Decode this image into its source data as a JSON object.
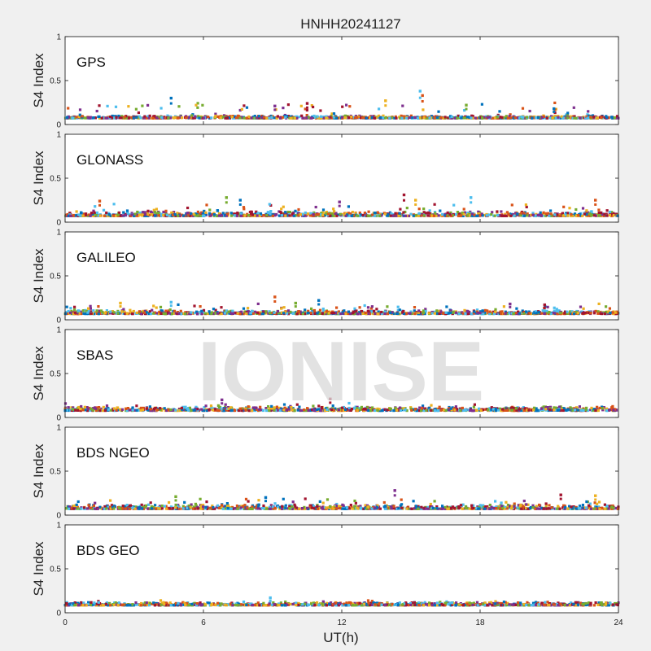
{
  "figure": {
    "title": "HNHH20241127",
    "watermark": "IONISE",
    "xlabel": "UT(h)",
    "ylabel": "S4 Index"
  },
  "chart_data": {
    "type": "scatter",
    "title": "HNHH20241127",
    "xlabel": "UT(h)",
    "ylabel": "S4 Index",
    "xlim": [
      0,
      24
    ],
    "ylim": [
      0,
      1
    ],
    "xticks": [
      0,
      6,
      12,
      18,
      24
    ],
    "yticks": [
      0,
      0.5,
      1
    ],
    "xtick_labels": [
      "0",
      "6",
      "12",
      "18",
      "24"
    ],
    "ytick_labels": [
      "0",
      "0.5",
      "1"
    ],
    "grid": false,
    "series_colors": [
      "#0072bd",
      "#d95319",
      "#edb120",
      "#7e2f8e",
      "#77ac30",
      "#4dbeee",
      "#a2142f"
    ],
    "panels": [
      {
        "name": "GPS",
        "baseline": [
          0.06,
          0.1
        ],
        "max_spike": 0.38,
        "spikes": [
          [
            4.6,
            0.3
          ],
          [
            9.1,
            0.21
          ],
          [
            10.5,
            0.24
          ],
          [
            13.9,
            0.27
          ],
          [
            15.4,
            0.38
          ],
          [
            15.5,
            0.33
          ],
          [
            17.4,
            0.22
          ],
          [
            21.2,
            0.18
          ]
        ]
      },
      {
        "name": "GLONASS",
        "baseline": [
          0.05,
          0.12
        ],
        "max_spike": 0.31,
        "spikes": [
          [
            1.5,
            0.24
          ],
          [
            7.0,
            0.28
          ],
          [
            7.6,
            0.25
          ],
          [
            11.9,
            0.23
          ],
          [
            14.7,
            0.31
          ],
          [
            15.2,
            0.25
          ],
          [
            17.6,
            0.28
          ],
          [
            23.0,
            0.25
          ]
        ]
      },
      {
        "name": "GALILEO",
        "baseline": [
          0.05,
          0.11
        ],
        "max_spike": 0.26,
        "spikes": [
          [
            2.4,
            0.19
          ],
          [
            4.6,
            0.2
          ],
          [
            9.1,
            0.26
          ],
          [
            10.0,
            0.19
          ],
          [
            11.0,
            0.22
          ],
          [
            19.3,
            0.18
          ],
          [
            20.8,
            0.17
          ]
        ]
      },
      {
        "name": "SBAS",
        "baseline": [
          0.06,
          0.12
        ],
        "max_spike": 0.21,
        "spikes": [
          [
            6.8,
            0.2
          ],
          [
            11.5,
            0.21
          ]
        ]
      },
      {
        "name": "BDS NGEO",
        "baseline": [
          0.05,
          0.12
        ],
        "max_spike": 0.28,
        "spikes": [
          [
            4.8,
            0.21
          ],
          [
            8.7,
            0.2
          ],
          [
            14.3,
            0.28
          ],
          [
            21.5,
            0.23
          ],
          [
            23.0,
            0.22
          ]
        ]
      },
      {
        "name": "BDS GEO",
        "baseline": [
          0.07,
          0.12
        ],
        "max_spike": 0.17,
        "spikes": [
          [
            8.9,
            0.17
          ]
        ]
      }
    ]
  }
}
